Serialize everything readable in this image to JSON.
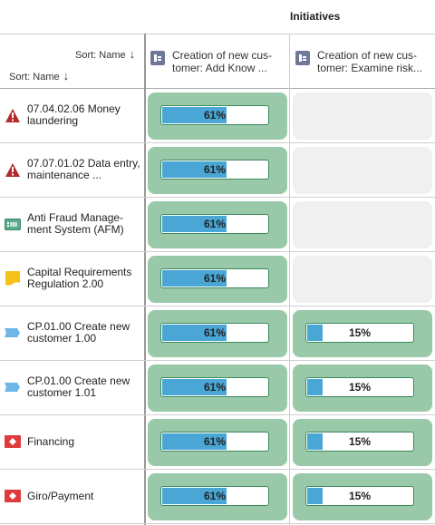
{
  "header": {
    "title": "Initiatives",
    "col_sort": "Sort: Name",
    "row_sort": "Sort: Name"
  },
  "columns": [
    {
      "label": "Creation of new cus-tomer: Add Know ...",
      "icon": "initiative-icon"
    },
    {
      "label": "Creation of new cus-tomer: Examine risk...",
      "icon": "initiative-icon"
    }
  ],
  "rows": [
    {
      "label": "07.04.02.06 Money laundering",
      "icon": "warning-triangle-icon",
      "icon_color": "#b52a2a",
      "values": [
        61,
        null
      ]
    },
    {
      "label": "07.07.01.02 Data entry, maintenance ...",
      "icon": "warning-triangle-icon",
      "icon_color": "#b52a2a",
      "values": [
        61,
        null
      ]
    },
    {
      "label": "Anti Fraud Manage-ment System (AFM)",
      "icon": "application-icon",
      "icon_color": "#5aab8c",
      "values": [
        61,
        null
      ]
    },
    {
      "label": "Capital Requirements Regulation 2.00",
      "icon": "regulation-icon",
      "icon_color": "#f4c21b",
      "values": [
        61,
        null
      ]
    },
    {
      "label": "CP.01.00 Create new customer 1.00",
      "icon": "process-icon",
      "icon_color": "#6cb7e6",
      "values": [
        61,
        15
      ]
    },
    {
      "label": "CP.01.00 Create new customer 1.01",
      "icon": "process-icon",
      "icon_color": "#6cb7e6",
      "values": [
        61,
        15
      ]
    },
    {
      "label": "Financing",
      "icon": "product-icon",
      "icon_color": "#e03b3b",
      "values": [
        61,
        15
      ]
    },
    {
      "label": "Giro/Payment",
      "icon": "product-icon",
      "icon_color": "#e03b3b",
      "values": [
        61,
        15
      ]
    }
  ],
  "cell_percent_labels": [
    [
      "61%",
      ""
    ],
    [
      "61%",
      ""
    ],
    [
      "61%",
      ""
    ],
    [
      "61%",
      ""
    ],
    [
      "61%",
      "15%"
    ],
    [
      "61%",
      "15%"
    ],
    [
      "61%",
      "15%"
    ],
    [
      "61%",
      "15%"
    ]
  ],
  "colors": {
    "cell_bg": "#99c9a8",
    "bar_fill": "#4aa6d5",
    "bar_border": "#3a8a5c",
    "empty_cell": "#f0f0f0"
  }
}
